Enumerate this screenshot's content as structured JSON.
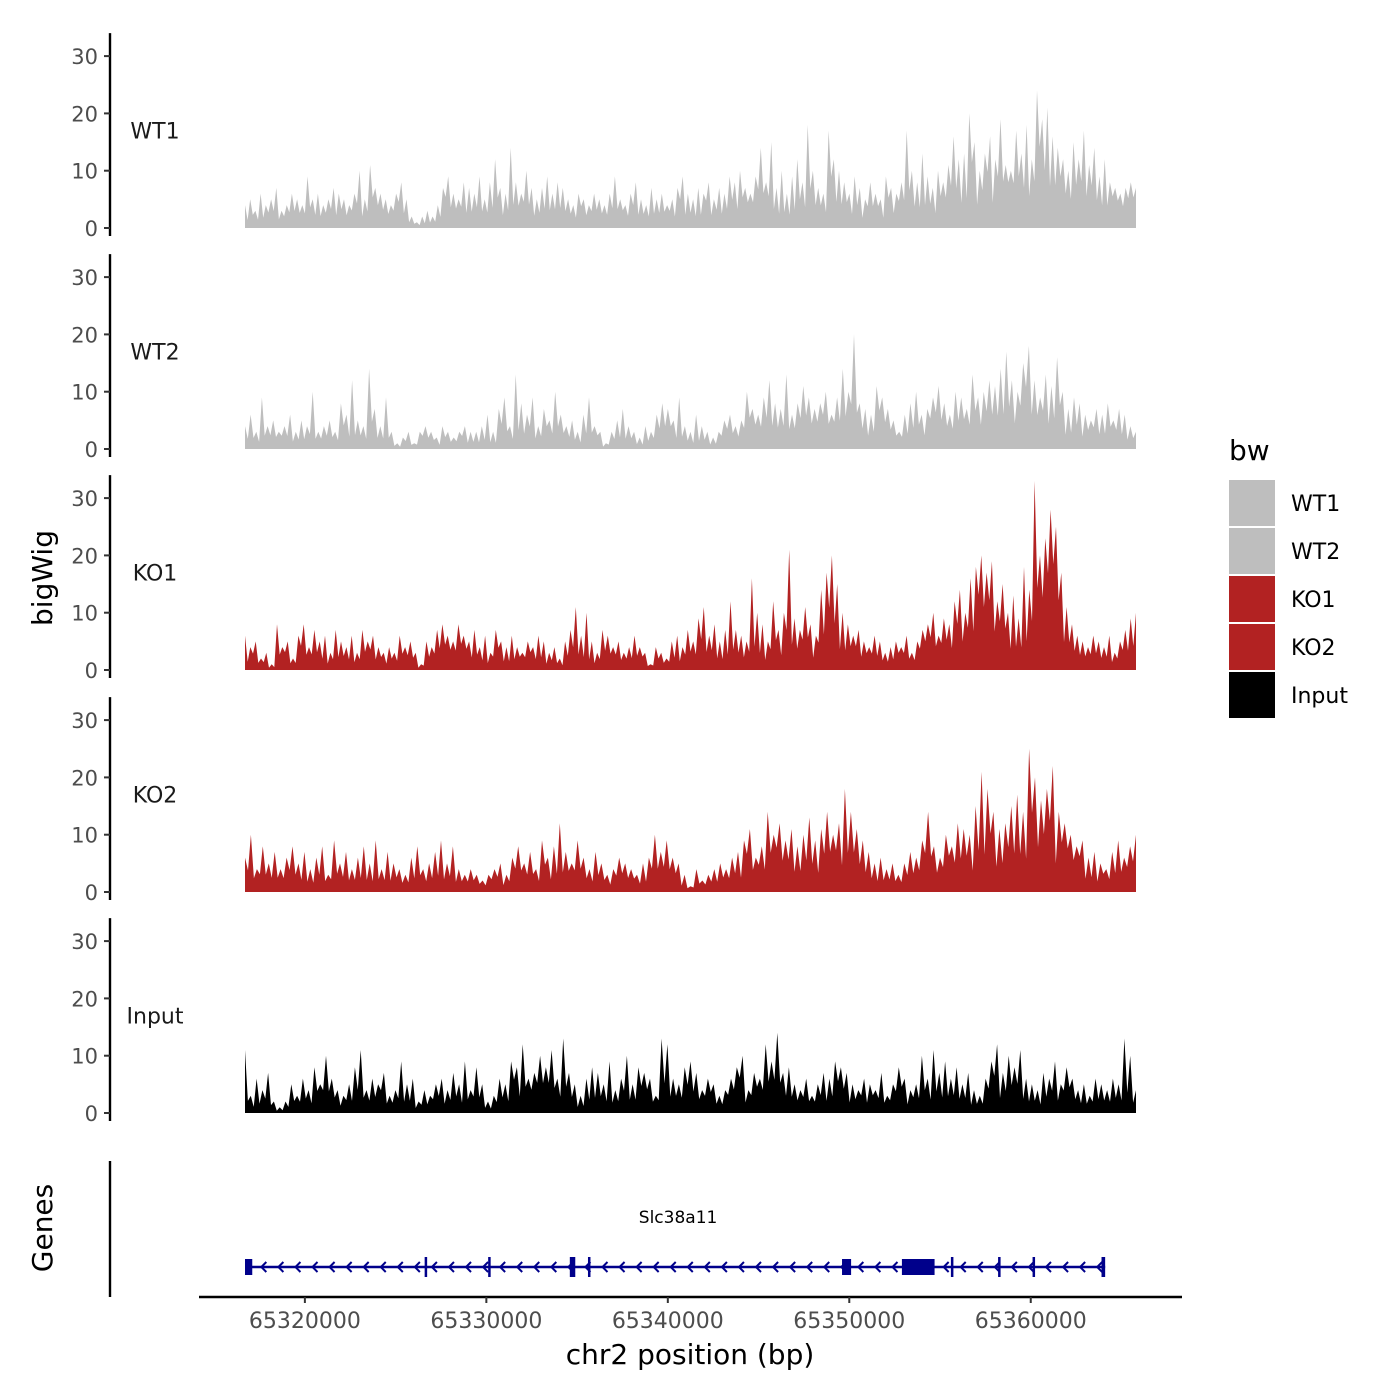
{
  "chart_data": {
    "type": "area",
    "ylabel": "bigWig",
    "xlabel": "chr2 position (bp)",
    "x_range": [
      65316700,
      65365800
    ],
    "x_ticks": [
      65320000,
      65330000,
      65340000,
      65350000,
      65360000
    ],
    "y_range": [
      0,
      34
    ],
    "y_ticks": [
      0,
      10,
      20,
      30
    ],
    "legend_title": "bw",
    "legend_position": "right",
    "series": [
      {
        "name": "WT1",
        "color": "#BEBEBE",
        "baseline": 4,
        "values": [
          4,
          5,
          3,
          6,
          4,
          5,
          7,
          3,
          4,
          6,
          5,
          4,
          9,
          5,
          6,
          4,
          5,
          7,
          6,
          5,
          4,
          6,
          10,
          5,
          11,
          7,
          6,
          5,
          4,
          6,
          8,
          5,
          2,
          1,
          2,
          3,
          2,
          4,
          7,
          9,
          6,
          5,
          8,
          7,
          6,
          9,
          5,
          8,
          12,
          7,
          6,
          14,
          8,
          6,
          10,
          7,
          5,
          7,
          9,
          6,
          8,
          7,
          5,
          4,
          6,
          5,
          4,
          6,
          5,
          4,
          6,
          9,
          5,
          4,
          6,
          8,
          5,
          4,
          7,
          5,
          6,
          4,
          5,
          7,
          9,
          6,
          5,
          7,
          6,
          8,
          5,
          7,
          6,
          9,
          8,
          10,
          7,
          6,
          9,
          14,
          8,
          15,
          7,
          10,
          6,
          9,
          12,
          8,
          18,
          10,
          7,
          6,
          17,
          12,
          10,
          8,
          6,
          9,
          7,
          5,
          8,
          6,
          5,
          9,
          7,
          6,
          8,
          17,
          10,
          8,
          13,
          9,
          7,
          10,
          8,
          11,
          16,
          12,
          13,
          20,
          15,
          10,
          13,
          16,
          12,
          19,
          11,
          10,
          17,
          13,
          18,
          12,
          24,
          19,
          21,
          16,
          14,
          12,
          10,
          15,
          12,
          17,
          11,
          14,
          9,
          12,
          8,
          7,
          6,
          7,
          8,
          7
        ]
      },
      {
        "name": "WT2",
        "color": "#BEBEBE",
        "baseline": 3,
        "values": [
          4,
          6,
          3,
          9,
          4,
          5,
          3,
          4,
          6,
          3,
          5,
          4,
          10,
          3,
          4,
          5,
          3,
          8,
          6,
          12,
          5,
          4,
          14,
          7,
          4,
          9,
          3,
          1,
          2,
          3,
          1,
          3,
          4,
          3,
          2,
          4,
          3,
          2,
          3,
          4,
          3,
          3,
          4,
          6,
          3,
          7,
          9,
          4,
          13,
          8,
          6,
          9,
          4,
          7,
          5,
          10,
          6,
          4,
          5,
          3,
          6,
          9,
          4,
          3,
          1,
          3,
          5,
          7,
          4,
          3,
          2,
          4,
          3,
          6,
          8,
          7,
          5,
          9,
          4,
          3,
          6,
          4,
          3,
          2,
          3,
          5,
          6,
          4,
          5,
          10,
          7,
          6,
          9,
          12,
          8,
          7,
          13,
          6,
          8,
          11,
          9,
          7,
          8,
          10,
          6,
          9,
          14,
          10,
          20,
          8,
          7,
          6,
          11,
          9,
          7,
          5,
          3,
          6,
          8,
          10,
          6,
          7,
          9,
          11,
          8,
          6,
          10,
          9,
          7,
          13,
          9,
          10,
          12,
          11,
          14,
          17,
          12,
          10,
          15,
          18,
          12,
          9,
          13,
          11,
          16,
          10,
          7,
          9,
          8,
          6,
          5,
          7,
          6,
          8,
          5,
          7,
          6,
          4,
          3
        ]
      },
      {
        "name": "KO1",
        "color": "#B22222",
        "baseline": 3,
        "values": [
          6,
          4,
          5,
          2,
          3,
          1,
          8,
          4,
          5,
          2,
          6,
          8,
          4,
          7,
          5,
          6,
          3,
          7,
          5,
          4,
          6,
          3,
          7,
          5,
          6,
          4,
          3,
          4,
          3,
          6,
          4,
          5,
          3,
          1,
          5,
          4,
          7,
          8,
          6,
          5,
          8,
          6,
          5,
          7,
          4,
          6,
          3,
          7,
          5,
          4,
          6,
          4,
          3,
          5,
          4,
          6,
          5,
          3,
          4,
          2,
          5,
          7,
          11,
          6,
          10,
          5,
          3,
          7,
          6,
          4,
          5,
          3,
          4,
          6,
          4,
          3,
          1,
          4,
          3,
          2,
          5,
          6,
          4,
          7,
          5,
          9,
          11,
          6,
          8,
          5,
          7,
          12,
          7,
          6,
          5,
          16,
          10,
          8,
          5,
          12,
          7,
          10,
          21,
          9,
          7,
          11,
          8,
          6,
          14,
          17,
          20,
          15,
          10,
          8,
          6,
          7,
          5,
          4,
          6,
          5,
          3,
          4,
          5,
          4,
          6,
          3,
          5,
          7,
          8,
          10,
          6,
          9,
          8,
          12,
          14,
          10,
          16,
          18,
          20,
          17,
          19,
          12,
          15,
          10,
          13,
          9,
          18,
          14,
          33,
          20,
          23,
          28,
          25,
          17,
          11,
          8,
          6,
          5,
          4,
          6,
          5,
          4,
          6,
          3,
          5,
          7,
          9,
          10
        ]
      },
      {
        "name": "KO2",
        "color": "#B22222",
        "baseline": 3,
        "values": [
          6,
          10,
          4,
          8,
          5,
          7,
          4,
          6,
          8,
          5,
          7,
          4,
          6,
          8,
          3,
          9,
          5,
          7,
          4,
          6,
          8,
          5,
          9,
          4,
          7,
          5,
          4,
          3,
          6,
          8,
          4,
          5,
          7,
          9,
          5,
          8,
          4,
          3,
          4,
          3,
          2,
          3,
          4,
          5,
          3,
          6,
          8,
          5,
          7,
          4,
          9,
          6,
          8,
          12,
          7,
          5,
          9,
          6,
          4,
          7,
          5,
          3,
          4,
          6,
          5,
          4,
          3,
          5,
          6,
          10,
          7,
          9,
          6,
          5,
          3,
          1,
          4,
          2,
          3,
          4,
          5,
          4,
          6,
          7,
          9,
          11,
          6,
          8,
          14,
          10,
          12,
          9,
          11,
          8,
          10,
          13,
          9,
          11,
          14,
          10,
          12,
          18,
          14,
          11,
          9,
          7,
          5,
          6,
          4,
          5,
          3,
          5,
          7,
          6,
          9,
          14,
          8,
          6,
          10,
          8,
          12,
          11,
          10,
          15,
          21,
          18,
          14,
          11,
          12,
          15,
          17,
          14,
          25,
          20,
          16,
          18,
          22,
          14,
          12,
          10,
          8,
          9,
          6,
          7,
          5,
          4,
          7,
          9,
          6,
          8,
          10
        ]
      },
      {
        "name": "Input",
        "color": "#000000",
        "baseline": 2,
        "values": [
          11,
          3,
          6,
          4,
          7,
          2,
          1,
          2,
          5,
          3,
          6,
          4,
          8,
          5,
          10,
          6,
          4,
          3,
          5,
          8,
          11,
          4,
          6,
          5,
          7,
          3,
          4,
          9,
          5,
          6,
          2,
          4,
          3,
          5,
          6,
          4,
          7,
          5,
          9,
          4,
          8,
          5,
          2,
          3,
          6,
          5,
          9,
          8,
          12,
          6,
          7,
          10,
          8,
          11,
          6,
          13,
          7,
          5,
          3,
          6,
          8,
          7,
          5,
          9,
          4,
          6,
          10,
          5,
          8,
          7,
          6,
          3,
          13,
          12,
          6,
          5,
          8,
          9,
          7,
          4,
          6,
          5,
          3,
          4,
          6,
          8,
          10,
          4,
          7,
          6,
          12,
          9,
          14,
          7,
          8,
          5,
          4,
          6,
          3,
          5,
          7,
          6,
          9,
          8,
          7,
          5,
          4,
          6,
          5,
          4,
          7,
          3,
          5,
          8,
          6,
          4,
          5,
          10,
          6,
          11,
          7,
          9,
          6,
          8,
          5,
          7,
          4,
          3,
          6,
          9,
          12,
          7,
          10,
          8,
          11,
          6,
          5,
          4,
          7,
          6,
          9,
          5,
          8,
          6,
          4,
          5,
          3,
          6,
          5,
          4,
          6,
          5,
          13,
          10,
          4
        ]
      }
    ],
    "genes": {
      "track_label": "Genes",
      "color": "#00008B",
      "name": "Slc38a11",
      "start": 65316700,
      "end": 65364100,
      "strand": "-",
      "exons": [
        {
          "start": 65316700,
          "end": 65317100,
          "kind": "utr"
        },
        {
          "start": 65326600,
          "end": 65326700,
          "kind": "cds"
        },
        {
          "start": 65330100,
          "end": 65330200,
          "kind": "cds"
        },
        {
          "start": 65334600,
          "end": 65334900,
          "kind": "cds"
        },
        {
          "start": 65335600,
          "end": 65335700,
          "kind": "cds"
        },
        {
          "start": 65349600,
          "end": 65350100,
          "kind": "utr"
        },
        {
          "start": 65352900,
          "end": 65354700,
          "kind": "utr"
        },
        {
          "start": 65355600,
          "end": 65355700,
          "kind": "cds"
        },
        {
          "start": 65358200,
          "end": 65358300,
          "kind": "cds"
        },
        {
          "start": 65360100,
          "end": 65360200,
          "kind": "cds"
        },
        {
          "start": 65363900,
          "end": 65364100,
          "kind": "cds"
        }
      ]
    }
  }
}
